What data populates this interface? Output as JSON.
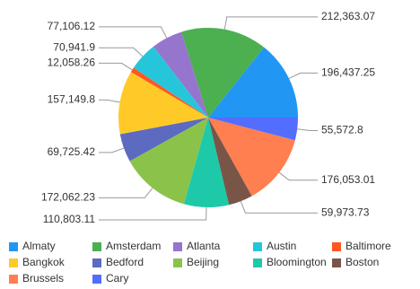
{
  "chart_data": {
    "type": "pie",
    "categories": [
      "Almaty",
      "Amsterdam",
      "Atlanta",
      "Austin",
      "Baltimore",
      "Bangkok",
      "Bedford",
      "Beijing",
      "Bloomington",
      "Boston",
      "Brussels",
      "Cary"
    ],
    "values": [
      196437.25,
      212363.07,
      77106.12,
      70941.9,
      12058.26,
      157149.8,
      69725.42,
      172062.23,
      110803.11,
      59973.73,
      176053.01,
      55572.8
    ],
    "value_labels": [
      "196,437.25",
      "212,363.07",
      "77,106.12",
      "70,941.9",
      "12,058.26",
      "157,149.8",
      "69,725.42",
      "172,062.23",
      "110,803.11",
      "59,973.73",
      "176,053.01",
      "55,572.8"
    ],
    "colors": [
      "#2196f3",
      "#4caf50",
      "#9575cd",
      "#26c6da",
      "#ff5722",
      "#ffca28",
      "#5c6bc0",
      "#8bc34a",
      "#1dc9a9",
      "#795548",
      "#ff7f50",
      "#536dfe"
    ],
    "legend": "bottom"
  }
}
